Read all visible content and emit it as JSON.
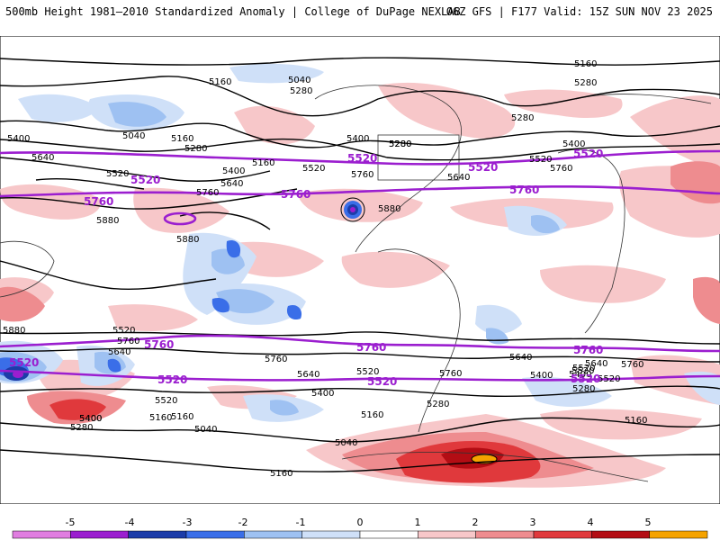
{
  "header": {
    "title": "500mb Height 1981–2010 Standardized Anomaly | College of DuPage NEXLAB",
    "run": "06Z GFS | F177 Valid: 15Z SUN NOV 23 2025"
  },
  "contours": {
    "black_labels": [
      "5160",
      "5040",
      "5280",
      "5160",
      "5280",
      "5040",
      "5160",
      "5280",
      "5400",
      "5520",
      "5640",
      "5760",
      "5400",
      "5520",
      "5280",
      "5400",
      "5640",
      "5760",
      "5880",
      "5880",
      "5160",
      "5280",
      "5280",
      "5400",
      "5520",
      "5640",
      "5760",
      "5160",
      "5520",
      "5400",
      "5760",
      "5640",
      "5880",
      "5520",
      "5400",
      "5280",
      "5160",
      "5040",
      "5160",
      "5400",
      "5520",
      "5640",
      "5760",
      "5280",
      "5400",
      "5520",
      "5640",
      "5760",
      "5160",
      "5040",
      "5520",
      "5280",
      "5400",
      "5160",
      "5520",
      "5640",
      "5760",
      "5880"
    ],
    "purple_labels": [
      "5520",
      "5760",
      "5520",
      "5760",
      "5520",
      "5760",
      "5520",
      "5760",
      "5760",
      "5760",
      "5520",
      "5520",
      "5520",
      "5520"
    ]
  },
  "colorbar": {
    "ticks": [
      "-5",
      "-4",
      "-3",
      "-2",
      "-1",
      "0",
      "1",
      "2",
      "3",
      "4",
      "5"
    ],
    "colors": [
      "#e07ee0",
      "#9b1ecf",
      "#1c3ca8",
      "#3a6ee8",
      "#9ec1f2",
      "#cfe0f8",
      "#ffffff",
      "#f7c7c9",
      "#ee8c8f",
      "#e0393c",
      "#b30d14",
      "#f5a300"
    ]
  }
}
